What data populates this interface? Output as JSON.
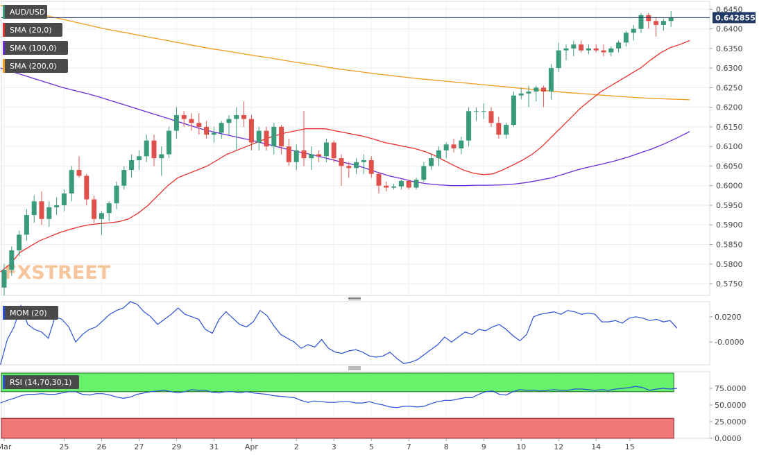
{
  "watermark": "FXSTREET",
  "colors": {
    "bull": "#3a9a7c",
    "bear": "#e0504a",
    "sma20": "#e8302a",
    "sma100": "#6a2bd8",
    "sma200": "#f39a1c",
    "mom": "#2b50d8",
    "rsi": "#2b50d8",
    "rsi_overbought_zone": "#66f26a",
    "rsi_oversold_zone": "#f07878",
    "price_line": "#1f3a66"
  },
  "chart_data": [
    {
      "type": "candlestick",
      "title": "AUD/USD",
      "legend": [
        {
          "name": "AUD/USD",
          "color": "#3a9a7c"
        },
        {
          "name": "SMA (20,0)",
          "color": "#e8302a"
        },
        {
          "name": "SMA (100,0)",
          "color": "#6a2bd8"
        },
        {
          "name": "SMA (200,0)",
          "color": "#f39a1c"
        }
      ],
      "last_price": "0.642855",
      "ylim": [
        0.572,
        0.647
      ],
      "y_ticks": [
        "0.6450",
        "0.6400",
        "0.6350",
        "0.6300",
        "0.6250",
        "0.6200",
        "0.6150",
        "0.6100",
        "0.6050",
        "0.6000",
        "0.5950",
        "0.5900",
        "0.5850",
        "0.5800",
        "0.5750"
      ],
      "x_labels": [
        "Mar",
        "25",
        "26",
        "27",
        "29",
        "31",
        "Apr",
        "2",
        "3",
        "5",
        "7",
        "8",
        "9",
        "10",
        "12",
        "14",
        "15"
      ],
      "x_label_index": [
        0,
        8,
        13,
        18,
        23,
        28,
        33,
        39,
        44,
        49,
        54,
        59,
        64,
        69,
        74,
        79,
        83.5
      ],
      "ohlc": [
        [
          0.574,
          0.58,
          0.572,
          0.5785
        ],
        [
          0.5785,
          0.5845,
          0.577,
          0.5835
        ],
        [
          0.5835,
          0.5885,
          0.582,
          0.5875
        ],
        [
          0.5875,
          0.594,
          0.586,
          0.5925
        ],
        [
          0.5925,
          0.5975,
          0.5905,
          0.596
        ],
        [
          0.596,
          0.5985,
          0.59,
          0.5915
        ],
        [
          0.5915,
          0.596,
          0.5895,
          0.5945
        ],
        [
          0.5945,
          0.597,
          0.5925,
          0.595
        ],
        [
          0.595,
          0.599,
          0.5935,
          0.598
        ],
        [
          0.598,
          0.605,
          0.596,
          0.604
        ],
        [
          0.604,
          0.6075,
          0.602,
          0.6025
        ],
        [
          0.6025,
          0.603,
          0.595,
          0.5965
        ],
        [
          0.5965,
          0.5975,
          0.5905,
          0.5915
        ],
        [
          0.5915,
          0.5935,
          0.5875,
          0.593
        ],
        [
          0.593,
          0.596,
          0.591,
          0.5955
        ],
        [
          0.5955,
          0.601,
          0.594,
          0.6
        ],
        [
          0.6,
          0.605,
          0.599,
          0.604
        ],
        [
          0.604,
          0.608,
          0.602,
          0.6065
        ],
        [
          0.6065,
          0.609,
          0.604,
          0.6075
        ],
        [
          0.6075,
          0.613,
          0.606,
          0.6115
        ],
        [
          0.6115,
          0.613,
          0.605,
          0.607
        ],
        [
          0.607,
          0.61,
          0.6025,
          0.608
        ],
        [
          0.608,
          0.615,
          0.607,
          0.614
        ],
        [
          0.614,
          0.62,
          0.612,
          0.618
        ],
        [
          0.618,
          0.619,
          0.615,
          0.617
        ],
        [
          0.617,
          0.6185,
          0.614,
          0.616
        ],
        [
          0.616,
          0.6185,
          0.613,
          0.615
        ],
        [
          0.615,
          0.6165,
          0.612,
          0.613
        ],
        [
          0.613,
          0.615,
          0.611,
          0.6135
        ],
        [
          0.6135,
          0.6165,
          0.612,
          0.616
        ],
        [
          0.616,
          0.618,
          0.613,
          0.617
        ],
        [
          0.617,
          0.62,
          0.609,
          0.618
        ],
        [
          0.618,
          0.6215,
          0.615,
          0.617
        ],
        [
          0.617,
          0.618,
          0.609,
          0.611
        ],
        [
          0.611,
          0.615,
          0.609,
          0.614
        ],
        [
          0.614,
          0.615,
          0.609,
          0.61
        ],
        [
          0.61,
          0.616,
          0.608,
          0.615
        ],
        [
          0.615,
          0.6155,
          0.608,
          0.61
        ],
        [
          0.61,
          0.612,
          0.605,
          0.606
        ],
        [
          0.606,
          0.6105,
          0.604,
          0.609
        ],
        [
          0.609,
          0.619,
          0.605,
          0.607
        ],
        [
          0.607,
          0.61,
          0.604,
          0.608
        ],
        [
          0.608,
          0.609,
          0.606,
          0.6075
        ],
        [
          0.6075,
          0.612,
          0.606,
          0.611
        ],
        [
          0.611,
          0.6115,
          0.606,
          0.607
        ],
        [
          0.607,
          0.608,
          0.6,
          0.605
        ],
        [
          0.605,
          0.606,
          0.602,
          0.6045
        ],
        [
          0.6045,
          0.607,
          0.603,
          0.606
        ],
        [
          0.606,
          0.608,
          0.603,
          0.6065
        ],
        [
          0.6065,
          0.6075,
          0.602,
          0.603
        ],
        [
          0.603,
          0.6035,
          0.598,
          0.6
        ],
        [
          0.6,
          0.601,
          0.5985,
          0.5995
        ],
        [
          0.5995,
          0.6005,
          0.599,
          0.5998
        ],
        [
          0.5998,
          0.6015,
          0.599,
          0.6012
        ],
        [
          0.6012,
          0.6015,
          0.599,
          0.5995
        ],
        [
          0.5995,
          0.602,
          0.599,
          0.6015
        ],
        [
          0.6015,
          0.606,
          0.601,
          0.605
        ],
        [
          0.605,
          0.608,
          0.604,
          0.607
        ],
        [
          0.607,
          0.61,
          0.605,
          0.609
        ],
        [
          0.609,
          0.611,
          0.607,
          0.6105
        ],
        [
          0.6105,
          0.612,
          0.6085,
          0.6095
        ],
        [
          0.6095,
          0.6125,
          0.608,
          0.6115
        ],
        [
          0.6115,
          0.62,
          0.61,
          0.619
        ],
        [
          0.619,
          0.62,
          0.6165,
          0.619
        ],
        [
          0.619,
          0.621,
          0.617,
          0.619
        ],
        [
          0.619,
          0.62,
          0.615,
          0.616
        ],
        [
          0.616,
          0.6175,
          0.612,
          0.613
        ],
        [
          0.613,
          0.616,
          0.612,
          0.6155
        ],
        [
          0.6155,
          0.624,
          0.615,
          0.623
        ],
        [
          0.623,
          0.625,
          0.622,
          0.6235
        ],
        [
          0.6235,
          0.6255,
          0.62,
          0.624
        ],
        [
          0.624,
          0.6255,
          0.6215,
          0.625
        ],
        [
          0.625,
          0.6255,
          0.62,
          0.624
        ],
        [
          0.624,
          0.631,
          0.622,
          0.63
        ],
        [
          0.63,
          0.6365,
          0.629,
          0.6345
        ],
        [
          0.6345,
          0.636,
          0.632,
          0.635
        ],
        [
          0.635,
          0.637,
          0.633,
          0.636
        ],
        [
          0.636,
          0.637,
          0.634,
          0.6345
        ],
        [
          0.6345,
          0.636,
          0.6335,
          0.635
        ],
        [
          0.635,
          0.636,
          0.634,
          0.6345
        ],
        [
          0.6345,
          0.636,
          0.633,
          0.634
        ],
        [
          0.634,
          0.6355,
          0.633,
          0.635
        ],
        [
          0.635,
          0.637,
          0.634,
          0.6365
        ],
        [
          0.6365,
          0.6395,
          0.6355,
          0.639
        ],
        [
          0.639,
          0.641,
          0.637,
          0.64
        ],
        [
          0.64,
          0.644,
          0.639,
          0.6435
        ],
        [
          0.6435,
          0.644,
          0.64,
          0.642
        ],
        [
          0.642,
          0.643,
          0.638,
          0.641
        ],
        [
          0.641,
          0.6425,
          0.6395,
          0.642
        ],
        [
          0.642,
          0.6445,
          0.6405,
          0.6429
        ]
      ],
      "sma20": [
        0.578,
        0.58,
        0.583,
        0.5845,
        0.586,
        0.587,
        0.588,
        0.5888,
        0.5895,
        0.59,
        0.5903,
        0.5905,
        0.5908,
        0.5915,
        0.593,
        0.595,
        0.5975,
        0.6,
        0.602,
        0.603,
        0.604,
        0.605,
        0.6065,
        0.608,
        0.609,
        0.61,
        0.611,
        0.612,
        0.6128,
        0.6135,
        0.614,
        0.6145,
        0.6145,
        0.6145,
        0.614,
        0.6135,
        0.613,
        0.6125,
        0.6118,
        0.611,
        0.6105,
        0.61,
        0.6095,
        0.6088,
        0.6078,
        0.6065,
        0.6052,
        0.604,
        0.6032,
        0.6028,
        0.603,
        0.604,
        0.6052,
        0.6065,
        0.608,
        0.61,
        0.6125,
        0.615,
        0.6175,
        0.62,
        0.622,
        0.624,
        0.6255,
        0.627,
        0.6285,
        0.63,
        0.632,
        0.6338,
        0.6352,
        0.636,
        0.637
      ],
      "sma20_start": 0,
      "sma100": [
        0.63,
        0.629,
        0.628,
        0.627,
        0.626,
        0.625,
        0.6242,
        0.6234,
        0.6225,
        0.6215,
        0.6205,
        0.6195,
        0.6185,
        0.6175,
        0.6165,
        0.6155,
        0.6145,
        0.6137,
        0.613,
        0.6123,
        0.6116,
        0.6108,
        0.61,
        0.6092,
        0.6085,
        0.6078,
        0.607,
        0.6062,
        0.6055,
        0.6046,
        0.6035,
        0.6025,
        0.6018,
        0.601,
        0.6005,
        0.6002,
        0.6,
        0.6,
        0.6001,
        0.6001,
        0.6002,
        0.6004,
        0.6008,
        0.6014,
        0.602,
        0.603,
        0.604,
        0.6048,
        0.6055,
        0.6063,
        0.6072,
        0.6083,
        0.6094,
        0.6107,
        0.6122,
        0.6138
      ],
      "sma200": [
        0.646,
        0.6448,
        0.6436,
        0.6424,
        0.6412,
        0.64,
        0.639,
        0.638,
        0.637,
        0.636,
        0.635,
        0.6342,
        0.6333,
        0.6325,
        0.6316,
        0.6308,
        0.6299,
        0.6292,
        0.6285,
        0.6279,
        0.6273,
        0.6268,
        0.6263,
        0.6258,
        0.6253,
        0.6248,
        0.6243,
        0.6238,
        0.6234,
        0.623,
        0.6226,
        0.6223,
        0.6221,
        0.6219
      ]
    },
    {
      "type": "line",
      "title": "MOM (20)",
      "ylim": [
        -0.018,
        0.032
      ],
      "y_ticks": [
        "0.0200",
        "-0.0000"
      ],
      "values": [
        -0.018,
        0.002,
        0.012,
        0.029,
        0.014,
        0.01,
        0.008,
        0.003,
        0.02,
        0.018,
        0.012,
        0.0,
        0.006,
        0.01,
        0.012,
        0.017,
        0.022,
        0.025,
        0.027,
        0.032,
        0.03,
        0.024,
        0.02,
        0.014,
        0.018,
        0.022,
        0.027,
        0.022,
        0.02,
        0.018,
        0.01,
        0.007,
        0.018,
        0.024,
        0.019,
        0.014,
        0.012,
        0.016,
        0.025,
        0.021,
        0.013,
        0.006,
        0.003,
        0.0,
        -0.005,
        -0.002,
        -0.004,
        0.002,
        -0.005,
        -0.008,
        -0.009,
        -0.007,
        -0.006,
        -0.008,
        -0.011,
        -0.012,
        -0.011,
        -0.008,
        -0.013,
        -0.017,
        -0.016,
        -0.014,
        -0.01,
        -0.006,
        -0.002,
        0.004,
        0.0,
        0.004,
        0.008,
        0.006,
        0.01,
        0.009,
        0.012,
        0.014,
        0.01,
        0.005,
        0.001,
        0.006,
        0.02,
        0.022,
        0.023,
        0.024,
        0.022,
        0.025,
        0.024,
        0.022,
        0.023,
        0.022,
        0.016,
        0.016,
        0.017,
        0.015,
        0.019,
        0.02,
        0.019,
        0.017,
        0.018,
        0.016,
        0.017,
        0.011
      ]
    },
    {
      "type": "line",
      "title": "RSI (14,70,30,1)",
      "ylim": [
        0,
        100
      ],
      "y_ticks": [
        "75.0000",
        "50.0000",
        "25.0000",
        "0.0000"
      ],
      "levels": [
        70,
        30
      ],
      "values": [
        53,
        57,
        60,
        64,
        66,
        66,
        67,
        66,
        66,
        68,
        70,
        70,
        66,
        65,
        67,
        67,
        65,
        62,
        60,
        62,
        66,
        68,
        70,
        71,
        72,
        70,
        68,
        70,
        73,
        72,
        72,
        69,
        68,
        70,
        70,
        68,
        70,
        68,
        67,
        66,
        64,
        63,
        62,
        61,
        57,
        54,
        56,
        55,
        54,
        54,
        55,
        55,
        53,
        53,
        55,
        52,
        50,
        47,
        46,
        48,
        48,
        47,
        48,
        52,
        55,
        57,
        57,
        59,
        61,
        61,
        66,
        70,
        71,
        66,
        65,
        70,
        73,
        72,
        72,
        71,
        72,
        73,
        72,
        72,
        74,
        74,
        73,
        72,
        73,
        72,
        74,
        75,
        76,
        78,
        76,
        72,
        74,
        75,
        74,
        75
      ]
    }
  ]
}
